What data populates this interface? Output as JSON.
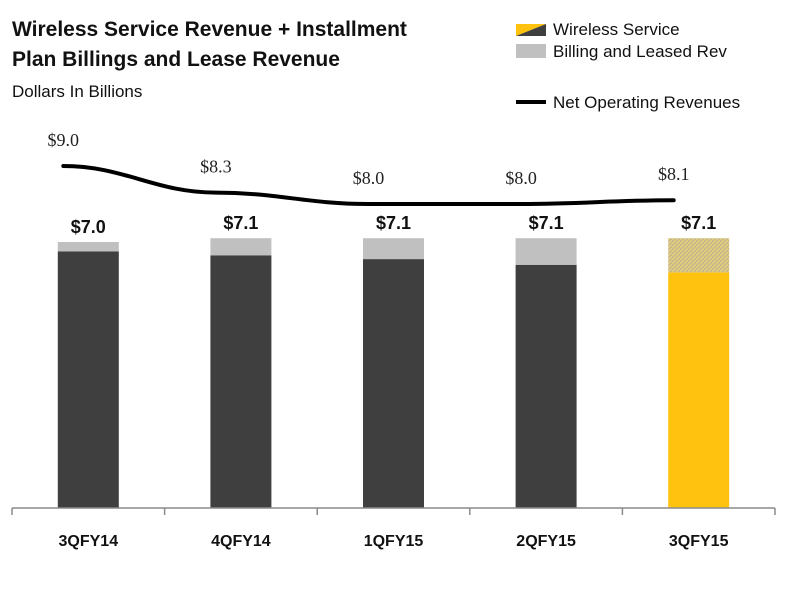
{
  "chart_data": {
    "type": "bar",
    "title": "Wireless Service Revenue + Installment Plan Billings and Lease Revenue",
    "title_lines": [
      "Wireless Service Revenue + Installment",
      "Plan Billings and Lease Revenue"
    ],
    "subtitle": "Dollars In Billions",
    "categories": [
      "3QFY14",
      "4QFY14",
      "1QFY15",
      "2QFY15",
      "3QFY15"
    ],
    "series": [
      {
        "name": "Wireless Service",
        "type": "bar",
        "stacked": true,
        "color": "#3f3f3f",
        "highlight_color": "#ffc20e",
        "values": [
          6.75,
          6.65,
          6.55,
          6.4,
          6.2
        ]
      },
      {
        "name": "Billing and Leased Rev",
        "type": "bar",
        "stacked": true,
        "color": "#c0c0c0",
        "values": [
          0.25,
          0.45,
          0.55,
          0.7,
          0.9
        ]
      },
      {
        "name": "Net Operating Revenues",
        "type": "line",
        "color": "#000000",
        "values": [
          9.0,
          8.3,
          8.0,
          8.0,
          8.1
        ]
      }
    ],
    "total_labels": [
      "$7.0",
      "$7.1",
      "$7.1",
      "$7.1",
      "$7.1"
    ],
    "line_labels": [
      "$9.0",
      "$8.3",
      "$8.0",
      "$8.0",
      "$8.1"
    ],
    "highlight_index": 4,
    "ylim": [
      0,
      10
    ],
    "grid": false,
    "legend_position": "top-right"
  }
}
